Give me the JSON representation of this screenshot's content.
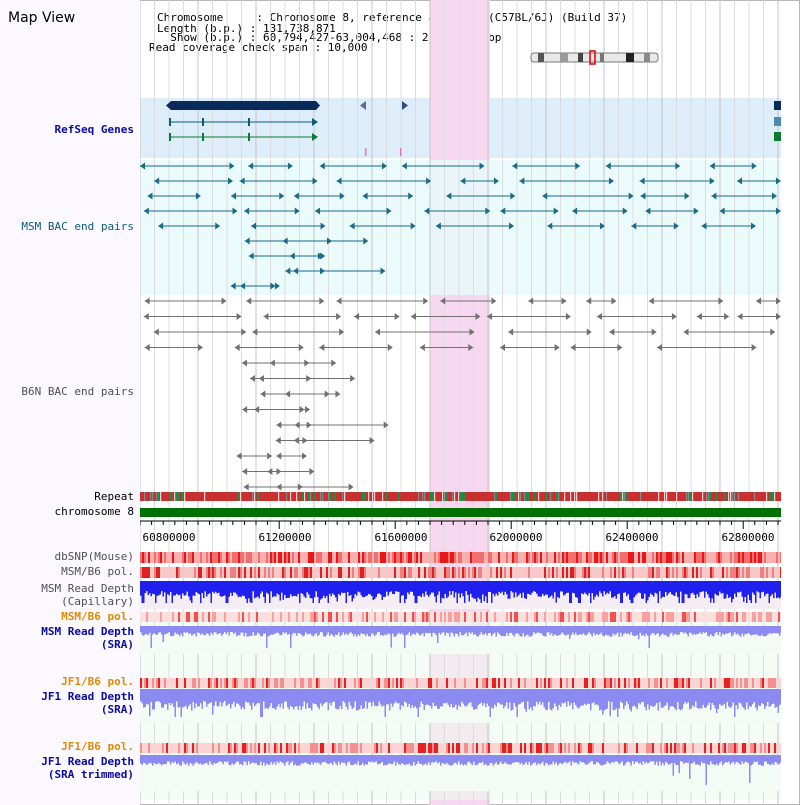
{
  "view_title": "Map View",
  "info": {
    "chromosome": "Chromosome     : Chromosome 8, reference assembly (C57BL/6J) (Build 37)",
    "length": "Length (b.p.) : 131,738,871",
    "show": "  Show (b.p.) : 60,794,427-63,004,468 : 2,210,042 bp",
    "coverage": "Read coverage check span : 10,000"
  },
  "tracks": {
    "refseq": "RefSeq Genes",
    "msm_bac": "MSM BAC end pairs",
    "b6n_bac": "B6N BAC end pairs",
    "repeat": "Repeat",
    "chromosome": "chromosome 8",
    "dbsnp": "dbSNP(Mouse)",
    "msm_pol": "MSM/B6 pol.",
    "msm_depth_cap_1": "MSM Read Depth",
    "msm_depth_cap_2": "(Capillary)",
    "msm_pol_2": "MSM/B6 pol.",
    "msm_depth_sra_1": "MSM Read Depth",
    "msm_depth_sra_2": "(SRA)",
    "jf1_pol_1": "JF1/B6 pol.",
    "jf1_depth_1": "JF1 Read Depth",
    "jf1_depth_1b": "(SRA)",
    "jf1_pol_2": "JF1/B6 pol.",
    "jf1_depth_2": "JF1 Read Depth",
    "jf1_depth_2b": "(SRA trimmed)"
  },
  "axis": {
    "ticks": [
      "60800000",
      "61200000",
      "61600000",
      "62000000",
      "62400000",
      "62800000"
    ]
  },
  "colors": {
    "highlight": "#f8d8f0",
    "refseq_bg": "#ddeefa",
    "bac_bg": "#e8fafa",
    "chromosome_bar": "#007000",
    "depth_blue": "#2a2aee",
    "depth_light": "#8080f0"
  }
}
